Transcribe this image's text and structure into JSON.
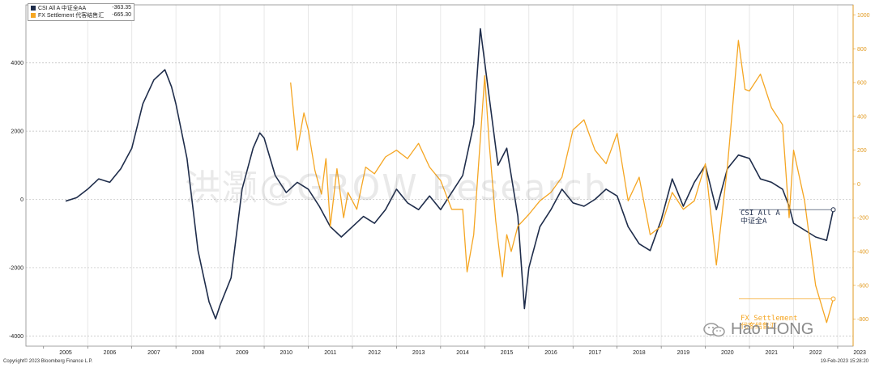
{
  "legend": {
    "items": [
      {
        "label": "CSI All A 中证全AA",
        "value": "-363.35",
        "color": "#1f2d4b"
      },
      {
        "label": "FX Settlement 代客结售汇",
        "value": "-665.30",
        "color": "#f5a623"
      }
    ]
  },
  "watermark": "洪灏@GROW Research",
  "annotations": {
    "csi": [
      "CSI All A",
      "中证全A"
    ],
    "fx": [
      "FX Settlement",
      "代客结售汇"
    ]
  },
  "brand": "Hao HONG",
  "footer": {
    "left": "Copyright© 2023 Bloomberg Finance L.P.",
    "right": "19-Feb-2023 15:28:20"
  },
  "chart_data": {
    "type": "line",
    "x_ticks": [
      "2005",
      "2006",
      "2007",
      "2008",
      "2009",
      "2010",
      "2011",
      "2012",
      "2013",
      "2014",
      "2015",
      "2016",
      "2017",
      "2018",
      "2019",
      "2020",
      "2021",
      "2022",
      "2023"
    ],
    "left_axis": {
      "ticks": [
        "4000",
        "2000",
        "0",
        "-2000",
        "-4000"
      ],
      "ylim": [
        -4300,
        5700
      ]
    },
    "right_axis": {
      "ticks": [
        "1000",
        "800",
        "600",
        "400",
        "200",
        "0",
        "-200",
        "-400",
        "-600",
        "-800"
      ],
      "ylim": [
        -960,
        1060
      ]
    },
    "series": [
      {
        "name": "CSI All A 中证全AA",
        "axis": "left",
        "color": "#1f2d4b",
        "points": [
          [
            2005.5,
            -50
          ],
          [
            2005.75,
            50
          ],
          [
            2006.0,
            300
          ],
          [
            2006.25,
            600
          ],
          [
            2006.5,
            500
          ],
          [
            2006.75,
            900
          ],
          [
            2007.0,
            1500
          ],
          [
            2007.25,
            2800
          ],
          [
            2007.5,
            3500
          ],
          [
            2007.75,
            3800
          ],
          [
            2007.9,
            3300
          ],
          [
            2008.0,
            2800
          ],
          [
            2008.25,
            1200
          ],
          [
            2008.5,
            -1500
          ],
          [
            2008.75,
            -3000
          ],
          [
            2008.9,
            -3500
          ],
          [
            2009.0,
            -3100
          ],
          [
            2009.25,
            -2300
          ],
          [
            2009.5,
            300
          ],
          [
            2009.75,
            1500
          ],
          [
            2009.9,
            1950
          ],
          [
            2010.0,
            1800
          ],
          [
            2010.25,
            700
          ],
          [
            2010.5,
            200
          ],
          [
            2010.75,
            500
          ],
          [
            2011.0,
            300
          ],
          [
            2011.25,
            -200
          ],
          [
            2011.5,
            -800
          ],
          [
            2011.75,
            -1100
          ],
          [
            2012.0,
            -800
          ],
          [
            2012.25,
            -500
          ],
          [
            2012.5,
            -700
          ],
          [
            2012.75,
            -300
          ],
          [
            2013.0,
            300
          ],
          [
            2013.25,
            -100
          ],
          [
            2013.5,
            -300
          ],
          [
            2013.75,
            100
          ],
          [
            2014.0,
            -300
          ],
          [
            2014.25,
            200
          ],
          [
            2014.5,
            700
          ],
          [
            2014.75,
            2200
          ],
          [
            2014.9,
            5000
          ],
          [
            2015.1,
            3000
          ],
          [
            2015.3,
            1000
          ],
          [
            2015.5,
            1500
          ],
          [
            2015.75,
            -500
          ],
          [
            2015.9,
            -3200
          ],
          [
            2016.0,
            -2000
          ],
          [
            2016.25,
            -800
          ],
          [
            2016.5,
            -300
          ],
          [
            2016.75,
            300
          ],
          [
            2017.0,
            -100
          ],
          [
            2017.25,
            -200
          ],
          [
            2017.5,
            0
          ],
          [
            2017.75,
            300
          ],
          [
            2018.0,
            100
          ],
          [
            2018.25,
            -800
          ],
          [
            2018.5,
            -1300
          ],
          [
            2018.75,
            -1500
          ],
          [
            2019.0,
            -600
          ],
          [
            2019.25,
            600
          ],
          [
            2019.5,
            -200
          ],
          [
            2019.75,
            500
          ],
          [
            2020.0,
            1000
          ],
          [
            2020.25,
            -300
          ],
          [
            2020.5,
            900
          ],
          [
            2020.75,
            1300
          ],
          [
            2021.0,
            1200
          ],
          [
            2021.25,
            600
          ],
          [
            2021.5,
            500
          ],
          [
            2021.75,
            300
          ],
          [
            2021.9,
            -200
          ],
          [
            2022.0,
            -700
          ],
          [
            2022.25,
            -900
          ],
          [
            2022.5,
            -1100
          ],
          [
            2022.75,
            -1200
          ],
          [
            2022.9,
            -300
          ]
        ]
      },
      {
        "name": "FX Settlement 代客结售汇",
        "axis": "right",
        "color": "#f5a623",
        "points": [
          [
            2010.6,
            600
          ],
          [
            2010.75,
            200
          ],
          [
            2010.9,
            420
          ],
          [
            2011.0,
            320
          ],
          [
            2011.15,
            80
          ],
          [
            2011.3,
            -60
          ],
          [
            2011.4,
            150
          ],
          [
            2011.5,
            -250
          ],
          [
            2011.65,
            90
          ],
          [
            2011.8,
            -200
          ],
          [
            2011.9,
            -50
          ],
          [
            2012.1,
            -150
          ],
          [
            2012.3,
            100
          ],
          [
            2012.5,
            60
          ],
          [
            2012.75,
            160
          ],
          [
            2013.0,
            200
          ],
          [
            2013.25,
            150
          ],
          [
            2013.5,
            240
          ],
          [
            2013.75,
            100
          ],
          [
            2014.0,
            20
          ],
          [
            2014.25,
            -150
          ],
          [
            2014.5,
            -150
          ],
          [
            2014.6,
            -520
          ],
          [
            2014.75,
            -300
          ],
          [
            2015.0,
            640
          ],
          [
            2015.1,
            240
          ],
          [
            2015.25,
            -220
          ],
          [
            2015.4,
            -550
          ],
          [
            2015.5,
            -300
          ],
          [
            2015.6,
            -400
          ],
          [
            2015.75,
            -250
          ],
          [
            2016.0,
            -180
          ],
          [
            2016.25,
            -100
          ],
          [
            2016.5,
            -50
          ],
          [
            2016.75,
            40
          ],
          [
            2017.0,
            320
          ],
          [
            2017.25,
            380
          ],
          [
            2017.5,
            200
          ],
          [
            2017.75,
            120
          ],
          [
            2018.0,
            300
          ],
          [
            2018.25,
            -100
          ],
          [
            2018.5,
            40
          ],
          [
            2018.75,
            -300
          ],
          [
            2019.0,
            -250
          ],
          [
            2019.25,
            -50
          ],
          [
            2019.5,
            -150
          ],
          [
            2019.75,
            -100
          ],
          [
            2020.0,
            120
          ],
          [
            2020.25,
            -480
          ],
          [
            2020.5,
            100
          ],
          [
            2020.75,
            850
          ],
          [
            2020.9,
            560
          ],
          [
            2021.0,
            550
          ],
          [
            2021.25,
            650
          ],
          [
            2021.5,
            450
          ],
          [
            2021.75,
            350
          ],
          [
            2021.9,
            -200
          ],
          [
            2022.0,
            200
          ],
          [
            2022.25,
            -100
          ],
          [
            2022.5,
            -600
          ],
          [
            2022.75,
            -820
          ],
          [
            2022.9,
            -680
          ]
        ]
      }
    ],
    "grid": true,
    "legend_position": "top-left"
  }
}
